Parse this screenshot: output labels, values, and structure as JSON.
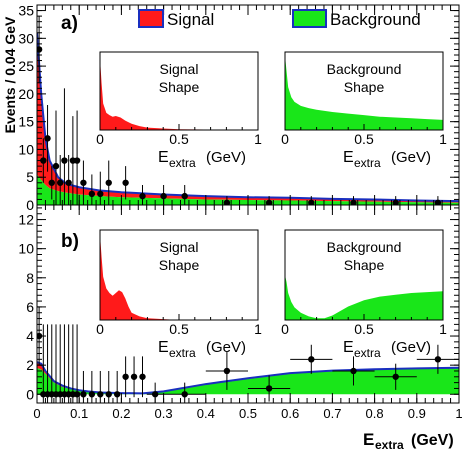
{
  "chart_data": [
    {
      "type": "scatter",
      "panel_label": "a)",
      "ylabel": "Events / 0.04 GeV",
      "xlim": [
        0,
        1
      ],
      "ylim": [
        0,
        36
      ],
      "y_ticks": [
        0,
        5,
        10,
        15,
        20,
        25,
        30,
        35
      ],
      "x_ticks": [
        0,
        0.1,
        0.2,
        0.3,
        0.4,
        0.5,
        0.6,
        0.7,
        0.8,
        0.9,
        1
      ],
      "legend": [
        {
          "name": "Signal",
          "fill": "#ff1a1a",
          "edge": "#1a2fbf"
        },
        {
          "name": "Background",
          "fill": "#19e619",
          "edge": "#1a2fbf"
        }
      ],
      "data_points": {
        "x": [
          0.005,
          0.015,
          0.025,
          0.035,
          0.045,
          0.055,
          0.065,
          0.075,
          0.085,
          0.095,
          0.11,
          0.13,
          0.15,
          0.17,
          0.21,
          0.25,
          0.3,
          0.35,
          0.45,
          0.55,
          0.65,
          0.75,
          0.85,
          0.95
        ],
        "y": [
          28,
          8,
          12,
          4,
          7,
          4,
          8,
          4,
          8,
          8,
          4,
          2,
          2,
          4,
          4,
          1.6,
          1.6,
          1.6,
          0.4,
          0.4,
          0.4,
          0.4,
          0.4,
          0.4
        ],
        "yerr": [
          6,
          4,
          6,
          3,
          10,
          5,
          13,
          5,
          8,
          9,
          4,
          3.5,
          4,
          4,
          3,
          2,
          2,
          2,
          1.2,
          1.2,
          1.2,
          1.2,
          1.2,
          1.2
        ]
      },
      "signal_total_curve": {
        "x": [
          0,
          0.01,
          0.02,
          0.03,
          0.05,
          0.07,
          0.1,
          0.15,
          0.2,
          0.3,
          0.4,
          0.5,
          0.6,
          0.7,
          0.8,
          0.9,
          1.0
        ],
        "y": [
          31,
          20,
          12,
          8,
          5,
          3.8,
          3.2,
          2.6,
          2.3,
          1.9,
          1.6,
          1.4,
          1.3,
          1.1,
          1.0,
          0.8,
          0.7
        ]
      },
      "background_curve": {
        "x": [
          0,
          0.01,
          0.02,
          0.03,
          0.05,
          0.07,
          0.1,
          0.15,
          0.2,
          0.3,
          0.4,
          0.5,
          0.6,
          0.7,
          0.8,
          0.9,
          1.0
        ],
        "y": [
          5.5,
          4.5,
          3.6,
          3.0,
          2.5,
          2.2,
          1.9,
          1.6,
          1.4,
          1.2,
          1.0,
          0.9,
          0.8,
          0.7,
          0.6,
          0.5,
          0.4
        ]
      },
      "insets": [
        {
          "title_lines": [
            "Signal",
            "Shape"
          ],
          "x_ticks": [
            "0",
            "0.5",
            "1"
          ],
          "xlabel": "E",
          "xlabel_sub": "extra",
          "xlabel_unit": "(GeV)",
          "shape": {
            "x": [
              0,
              0.01,
              0.02,
              0.04,
              0.06,
              0.08,
              0.1,
              0.13,
              0.16,
              0.2,
              0.25,
              0.3,
              0.4,
              0.5,
              1.0
            ],
            "y": [
              0.92,
              0.6,
              0.34,
              0.22,
              0.19,
              0.17,
              0.18,
              0.16,
              0.12,
              0.08,
              0.05,
              0.03,
              0.02,
              0.01,
              0.0
            ]
          }
        },
        {
          "title_lines": [
            "Background",
            "Shape"
          ],
          "x_ticks": [
            "0",
            "0.5",
            "1"
          ],
          "xlabel": "E",
          "xlabel_sub": "extra",
          "xlabel_unit": "(GeV)",
          "shape": {
            "x": [
              0,
              0.01,
              0.02,
              0.04,
              0.06,
              0.1,
              0.15,
              0.2,
              0.3,
              0.4,
              0.5,
              0.6,
              0.7,
              0.8,
              0.9,
              1.0
            ],
            "y": [
              0.95,
              0.75,
              0.55,
              0.42,
              0.36,
              0.31,
              0.28,
              0.26,
              0.23,
              0.21,
              0.19,
              0.17,
              0.16,
              0.15,
              0.14,
              0.13
            ]
          }
        }
      ]
    },
    {
      "type": "scatter",
      "panel_label": "b)",
      "xlabel": "E",
      "xlabel_sub": "extra",
      "xlabel_unit": "(GeV)",
      "xlim": [
        0,
        1
      ],
      "ylim": [
        -0.6,
        13
      ],
      "y_ticks": [
        0,
        2,
        4,
        6,
        8,
        10,
        12
      ],
      "x_ticks": [
        0,
        0.1,
        0.2,
        0.3,
        0.4,
        0.5,
        0.6,
        0.7,
        0.8,
        0.9,
        1
      ],
      "data_points": {
        "x": [
          0.005,
          0.015,
          0.025,
          0.035,
          0.045,
          0.055,
          0.065,
          0.075,
          0.085,
          0.095,
          0.11,
          0.13,
          0.15,
          0.17,
          0.19,
          0.21,
          0.23,
          0.25,
          0.28,
          0.35,
          0.45,
          0.55,
          0.65,
          0.75,
          0.85,
          0.95
        ],
        "y": [
          4,
          0,
          0,
          0,
          0,
          0,
          0,
          0,
          0,
          0,
          0,
          0,
          0,
          0,
          0,
          1.2,
          1.2,
          1.2,
          0,
          0,
          1.6,
          0.4,
          2.4,
          1.6,
          1.2,
          2.4
        ],
        "yerr": [
          2,
          4.8,
          4.8,
          4.8,
          4.8,
          4.8,
          4.8,
          4.8,
          4.8,
          4.8,
          1.6,
          1.6,
          1.6,
          1.6,
          1.6,
          1.4,
          1.4,
          1.4,
          0.8,
          0.8,
          1.3,
          0.9,
          1.0,
          1.0,
          0.9,
          1.0
        ],
        "xerr": [
          0,
          0,
          0,
          0,
          0,
          0,
          0,
          0,
          0,
          0,
          0,
          0,
          0,
          0,
          0,
          0,
          0,
          0,
          0.02,
          0.05,
          0.05,
          0.05,
          0.05,
          0.05,
          0.05,
          0.05
        ]
      },
      "signal_total_curve": {
        "x": [
          0,
          0.01,
          0.02,
          0.04,
          0.06,
          0.08,
          0.1,
          0.12,
          0.15,
          0.2,
          0.25,
          0.3,
          0.4,
          0.5,
          0.6,
          0.7,
          0.8,
          0.9,
          1.0
        ],
        "y": [
          2.2,
          2.1,
          1.6,
          0.9,
          0.6,
          0.4,
          0.28,
          0.2,
          0.12,
          0.08,
          0.06,
          0.2,
          0.7,
          1.1,
          1.45,
          1.62,
          1.72,
          1.78,
          1.82
        ]
      },
      "background_curve": {
        "x": [
          0,
          0.01,
          0.02,
          0.04,
          0.06,
          0.08,
          0.1,
          0.12,
          0.15,
          0.2,
          0.25,
          0.3,
          0.4,
          0.5,
          0.6,
          0.7,
          0.8,
          0.9,
          1.0
        ],
        "y": [
          1.8,
          1.7,
          1.4,
          0.8,
          0.5,
          0.35,
          0.25,
          0.18,
          0.1,
          0.06,
          0.05,
          0.18,
          0.65,
          1.05,
          1.4,
          1.58,
          1.7,
          1.76,
          1.8
        ]
      },
      "insets": [
        {
          "title_lines": [
            "Signal",
            "Shape"
          ],
          "x_ticks": [
            "0",
            "0.5",
            "1"
          ],
          "xlabel": "E",
          "xlabel_sub": "extra",
          "xlabel_unit": "(GeV)",
          "shape": {
            "x": [
              0,
              0.01,
              0.02,
              0.04,
              0.06,
              0.08,
              0.1,
              0.12,
              0.14,
              0.16,
              0.18,
              0.2,
              0.25,
              0.3,
              0.4,
              0.5,
              1.0
            ],
            "y": [
              0.95,
              0.7,
              0.48,
              0.35,
              0.3,
              0.27,
              0.3,
              0.33,
              0.31,
              0.24,
              0.15,
              0.08,
              0.04,
              0.02,
              0.01,
              0.0,
              0.0
            ]
          }
        },
        {
          "title_lines": [
            "Background",
            "Shape"
          ],
          "x_ticks": [
            "0",
            "0.5",
            "1"
          ],
          "xlabel": "E",
          "xlabel_sub": "extra",
          "xlabel_unit": "(GeV)",
          "shape": {
            "x": [
              0,
              0.01,
              0.02,
              0.04,
              0.06,
              0.1,
              0.15,
              0.2,
              0.25,
              0.3,
              0.35,
              0.4,
              0.5,
              0.6,
              0.7,
              0.8,
              0.9,
              1.0
            ],
            "y": [
              0.5,
              0.42,
              0.3,
              0.2,
              0.14,
              0.08,
              0.04,
              0.02,
              0.02,
              0.05,
              0.1,
              0.15,
              0.22,
              0.26,
              0.28,
              0.3,
              0.31,
              0.32
            ]
          }
        }
      ]
    }
  ]
}
